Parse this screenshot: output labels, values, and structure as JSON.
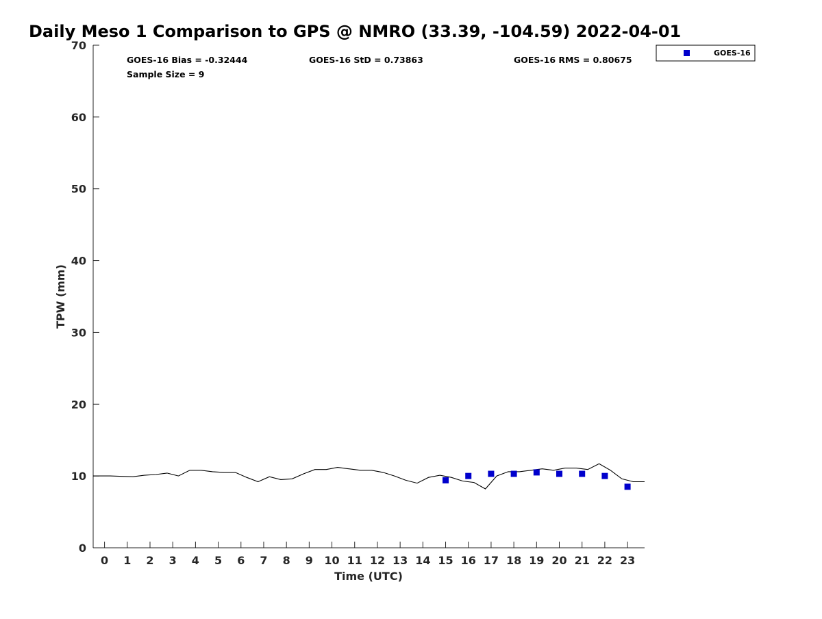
{
  "chart_data": {
    "type": "scatter",
    "title": "Daily Meso 1 Comparison to GPS @ NMRO (33.39, -104.59) 2022-04-01",
    "xlabel": "Time (UTC)",
    "ylabel": "TPW (mm)",
    "xlim": [
      -0.5,
      23.75
    ],
    "ylim": [
      0,
      70
    ],
    "x_ticks": [
      0,
      1,
      2,
      3,
      4,
      5,
      6,
      7,
      8,
      9,
      10,
      11,
      12,
      13,
      14,
      15,
      16,
      17,
      18,
      19,
      20,
      21,
      22,
      23
    ],
    "y_ticks": [
      0,
      10,
      20,
      30,
      40,
      50,
      60,
      70
    ],
    "grid": false,
    "legend_position": "outside-top-right",
    "stats": {
      "bias": "GOES-16 Bias = -0.32444",
      "std": "GOES-16 StD = 0.73863",
      "rms": "GOES-16 RMS = 0.80675",
      "sample": "Sample Size = 9"
    },
    "gps_line": {
      "color": "#000000",
      "x": [
        -0.5,
        0.25,
        0.75,
        1.25,
        1.75,
        2.25,
        2.75,
        3.25,
        3.75,
        4.25,
        4.75,
        5.25,
        5.75,
        6.25,
        6.75,
        7.25,
        7.75,
        8.25,
        8.75,
        9.25,
        9.75,
        10.25,
        10.75,
        11.25,
        11.75,
        12.25,
        12.75,
        13.25,
        13.75,
        14.25,
        14.75,
        15.25,
        15.75,
        16.25,
        16.75,
        17.25,
        17.75,
        18.25,
        18.75,
        19.25,
        19.75,
        20.25,
        20.75,
        21.25,
        21.75,
        22.25,
        22.75,
        23.25,
        23.75
      ],
      "y": [
        10.0,
        10.0,
        9.95,
        9.9,
        10.1,
        10.2,
        10.4,
        10.0,
        10.8,
        10.8,
        10.6,
        10.5,
        10.5,
        9.8,
        9.2,
        9.9,
        9.5,
        9.6,
        10.3,
        10.9,
        10.9,
        11.2,
        11.0,
        10.8,
        10.8,
        10.5,
        10.0,
        9.4,
        9.0,
        9.8,
        10.1,
        9.8,
        9.3,
        9.1,
        8.2,
        10.0,
        10.6,
        10.6,
        10.8,
        11.0,
        10.8,
        11.1,
        11.1,
        10.9,
        11.7,
        10.8,
        9.6,
        9.2,
        9.2
      ]
    },
    "series": [
      {
        "name": "GOES-16",
        "color": "#0000cc",
        "x": [
          15,
          16,
          17,
          18,
          19,
          20,
          21,
          22,
          23
        ],
        "y": [
          9.4,
          10.0,
          10.3,
          10.3,
          10.5,
          10.3,
          10.3,
          10.0,
          8.5
        ]
      }
    ]
  }
}
